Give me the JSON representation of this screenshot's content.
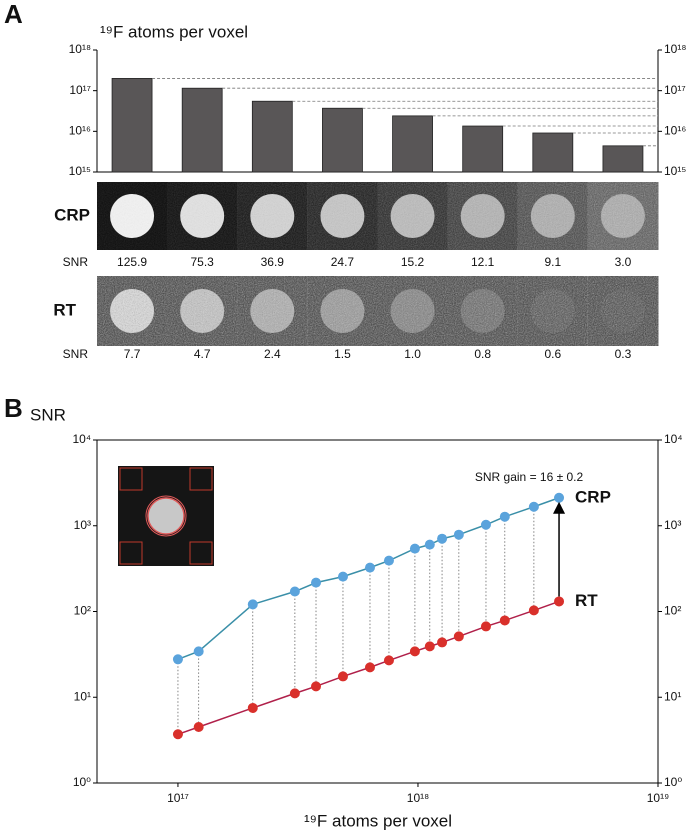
{
  "panels": [
    "A",
    "B"
  ],
  "image_rows": [
    {
      "label": "CRP",
      "color": "#5b9bd5",
      "snr_label": "SNR",
      "snr": [
        "125.9",
        "75.3",
        "36.9",
        "24.7",
        "15.2",
        "12.1",
        "9.1",
        "3.0"
      ]
    },
    {
      "label": "RT",
      "color": "#e0302a",
      "snr_label": "SNR",
      "snr": [
        "7.7",
        "4.7",
        "2.4",
        "1.5",
        "1.0",
        "0.8",
        "0.6",
        "0.3"
      ]
    }
  ],
  "chart_data": [
    {
      "type": "bar",
      "title": "¹⁹F atoms per voxel",
      "values": [
        2e+17,
        1.15e+17,
        5.5e+16,
        3.7e+16,
        2.4e+16,
        1.35e+16,
        9100000000000000.0,
        4400000000000000.0
      ],
      "color": "#595657",
      "log_y": true,
      "ylim": [
        1000000000000000.0,
        1e+18
      ],
      "yticks": [
        {
          "value": 1000000000000000.0,
          "label": "10¹⁵"
        },
        {
          "value": 1e+16,
          "label": "10¹⁶"
        },
        {
          "value": 1e+17,
          "label": "10¹⁷"
        },
        {
          "value": 1e+18,
          "label": "10¹⁸"
        }
      ]
    },
    {
      "type": "scatter",
      "y_label": "SNR",
      "x_label": "¹⁹F atoms per voxel",
      "log_x": true,
      "log_y": true,
      "x": [
        1e+17,
        1.22e+17,
        2.05e+17,
        3.07e+17,
        3.76e+17,
        4.87e+17,
        6.31e+17,
        7.57e+17,
        9.71e+17,
        1.12e+18,
        1.26e+18,
        1.48e+18,
        1.92e+18,
        2.3e+18,
        3.04e+18,
        3.87e+18
      ],
      "series": [
        {
          "name": "CRP",
          "color": "#5aa3dc",
          "line_color": "#3a8fa8",
          "values": [
            27.7,
            34.3,
            121,
            171,
            217,
            255,
            325,
            392,
            541,
            602,
            706,
            786,
            1027,
            1275,
            1665,
            2120
          ]
        },
        {
          "name": "RT",
          "color": "#d9302b",
          "line_color": "#b0204a",
          "values": [
            3.7,
            4.5,
            7.5,
            11.1,
            13.4,
            17.5,
            22.3,
            26.9,
            34.3,
            39.2,
            43.6,
            51.2,
            67.0,
            78.6,
            103,
            131
          ]
        }
      ],
      "annotation": "SNR gain = 16 ± 0.2",
      "xlim": [
        4.6e+16,
        1e+19
      ],
      "xticks": [
        {
          "value": 1e+17,
          "label": "10¹⁷"
        },
        {
          "value": 1e+18,
          "label": "10¹⁸"
        },
        {
          "value": 1e+19,
          "label": "10¹⁹"
        }
      ],
      "ylim": [
        1,
        10000
      ],
      "yticks": [
        {
          "value": 1,
          "label": "10⁰"
        },
        {
          "value": 10,
          "label": "10¹"
        },
        {
          "value": 100,
          "label": "10²"
        },
        {
          "value": 1000,
          "label": "10³"
        },
        {
          "value": 10000,
          "label": "10⁴"
        }
      ]
    }
  ]
}
